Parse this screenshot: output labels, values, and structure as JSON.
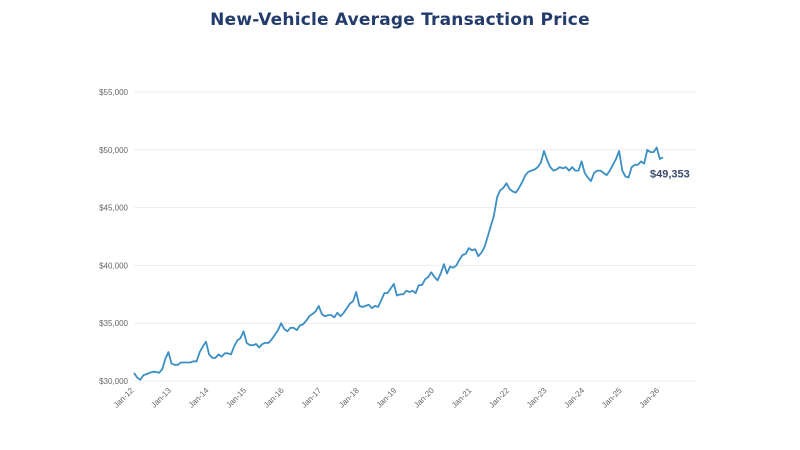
{
  "chart_data": {
    "type": "line",
    "title": "New-Vehicle Average Transaction Price",
    "xlabel": "",
    "ylabel": "",
    "ylim": [
      30000,
      55000
    ],
    "yticks": [
      "$30,000",
      "$35,000",
      "$40,000",
      "$45,000",
      "$50,000",
      "$55,000"
    ],
    "ytick_values": [
      30000,
      35000,
      40000,
      45000,
      50000,
      55000
    ],
    "xticks": [
      "Jan-12",
      "Jan-13",
      "Jan-14",
      "Jan-15",
      "Jan-16",
      "Jan-17",
      "Jan-18",
      "Jan-19",
      "Jan-20",
      "Jan-21",
      "Jan-22",
      "Jan-23",
      "Jan-24",
      "Jan-25",
      "Jan-26"
    ],
    "x_start": "Jan-12",
    "x_frequency": "monthly",
    "grid": true,
    "line_color": "#3b8fc4",
    "last_value_label": "$49,353",
    "values": [
      30700,
      30300,
      30100,
      30500,
      30600,
      30700,
      30800,
      30800,
      30700,
      31000,
      31900,
      32500,
      31500,
      31400,
      31400,
      31600,
      31600,
      31600,
      31600,
      31700,
      31700,
      32500,
      33000,
      33400,
      32300,
      32000,
      32000,
      32300,
      32100,
      32400,
      32400,
      32300,
      33000,
      33500,
      33700,
      34300,
      33300,
      33100,
      33100,
      33200,
      32900,
      33200,
      33300,
      33300,
      33600,
      34000,
      34400,
      35000,
      34500,
      34300,
      34600,
      34600,
      34400,
      34800,
      34900,
      35200,
      35600,
      35800,
      36000,
      36500,
      35800,
      35600,
      35700,
      35700,
      35500,
      35900,
      35600,
      35900,
      36300,
      36700,
      36900,
      37700,
      36500,
      36400,
      36500,
      36600,
      36300,
      36500,
      36400,
      37000,
      37600,
      37600,
      38000,
      38400,
      37400,
      37500,
      37500,
      37800,
      37700,
      37800,
      37600,
      38300,
      38300,
      38800,
      39000,
      39400,
      39000,
      38700,
      39300,
      40100,
      39300,
      39900,
      39800,
      40000,
      40500,
      40900,
      41000,
      41500,
      41300,
      41400,
      40800,
      41100,
      41600,
      42500,
      43400,
      44300,
      45900,
      46500,
      46700,
      47100,
      46600,
      46400,
      46300,
      46700,
      47200,
      47800,
      48100,
      48200,
      48300,
      48500,
      48900,
      49900,
      49100,
      48500,
      48200,
      48300,
      48500,
      48400,
      48500,
      48200,
      48500,
      48200,
      48200,
      49000,
      48000,
      47600,
      47300,
      48000,
      48200,
      48200,
      48000,
      47800,
      48200,
      48700,
      49200,
      49900,
      48200,
      47700,
      47600,
      48500,
      48700,
      48700,
      49000,
      48800,
      50000,
      49800,
      49800,
      50200,
      49200,
      49353
    ]
  }
}
